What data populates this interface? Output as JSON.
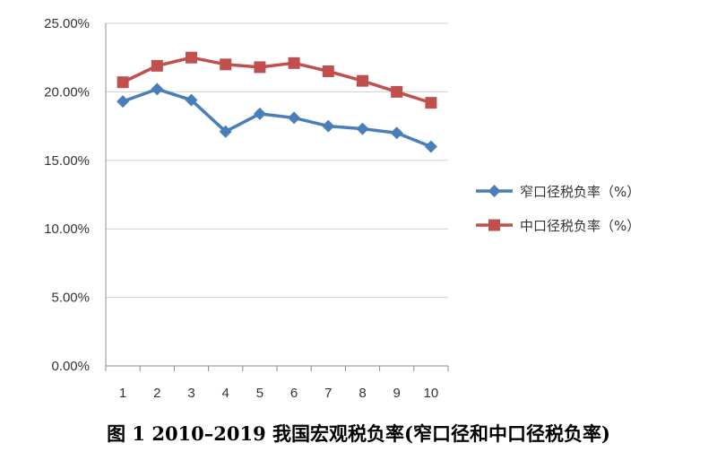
{
  "chart_data": {
    "type": "line",
    "categories": [
      "1",
      "2",
      "3",
      "4",
      "5",
      "6",
      "7",
      "8",
      "9",
      "10"
    ],
    "ylim": [
      0,
      25
    ],
    "yticks": [
      "0.00%",
      "5.00%",
      "10.00%",
      "15.00%",
      "20.00%",
      "25.00%"
    ],
    "grid": "horizontal",
    "legend_position": "right",
    "series": [
      {
        "name": "窄口径税负率（%）",
        "color": "#4a7ebb",
        "marker": "diamond",
        "values": [
          19.3,
          20.2,
          19.4,
          17.1,
          18.4,
          18.1,
          17.5,
          17.3,
          17.0,
          16.0
        ]
      },
      {
        "name": "中口径税负率（%）",
        "color": "#c0504d",
        "marker": "square",
        "values": [
          20.7,
          21.9,
          22.5,
          22.0,
          21.8,
          22.1,
          21.5,
          20.8,
          20.0,
          19.2
        ]
      }
    ]
  },
  "caption": "图 1   2010–2019 我国宏观税负率(窄口径和中口径税负率)"
}
